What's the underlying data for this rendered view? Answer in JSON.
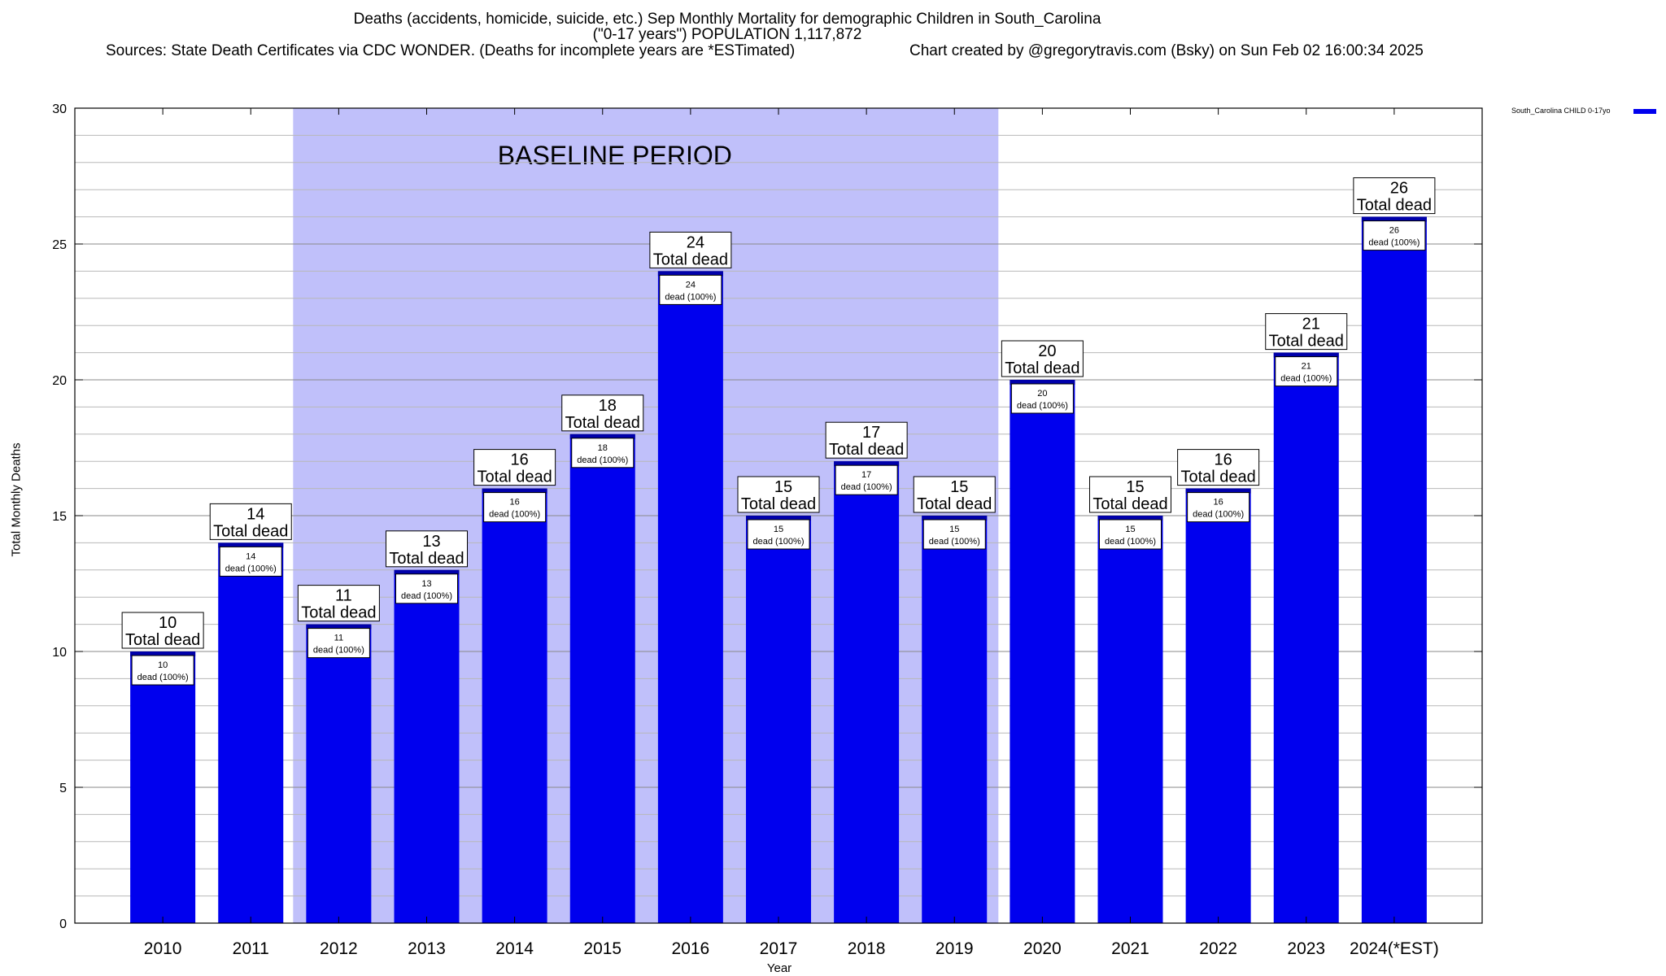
{
  "header": {
    "title_line1": "Deaths (accidents, homicide, suicide, etc.) Sep Monthly Mortality for demographic Children in South_Carolina",
    "title_line2": "(\"0-17 years\") POPULATION 1,117,872",
    "sources": "Sources: State Death Certificates via CDC WONDER. (Deaths for incomplete years are *ESTimated)",
    "credit": "Chart created by @gregorytravis.com (Bsky) on Sun Feb 02 16:00:34 2025"
  },
  "chart_data": {
    "type": "bar",
    "categories": [
      "2010",
      "2011",
      "2012",
      "2013",
      "2014",
      "2015",
      "2016",
      "2017",
      "2018",
      "2019",
      "2020",
      "2021",
      "2022",
      "2023",
      "2024(*EST)"
    ],
    "series": [
      {
        "name": "South_Carolina CHILD 0-17yo",
        "values": [
          10,
          14,
          11,
          13,
          16,
          18,
          24,
          15,
          17,
          15,
          20,
          15,
          16,
          21,
          26
        ]
      }
    ],
    "xlabel": "Year",
    "ylabel": "Total Monthly Deaths",
    "ylim": [
      0,
      30
    ],
    "yticks": [
      0,
      5,
      10,
      15,
      20,
      25,
      30
    ],
    "grid": true,
    "legend_position": "top-right",
    "baseline_period": {
      "label": "BASELINE PERIOD",
      "from": "2012",
      "to": "2019"
    },
    "bar_label_total_suffix": "Total dead",
    "bar_label_inner_suffix": "dead (100%)",
    "colors": {
      "bar": "#0000ee",
      "bar_top": "#0000aa",
      "baseline_band": "#c0c0fa"
    }
  }
}
